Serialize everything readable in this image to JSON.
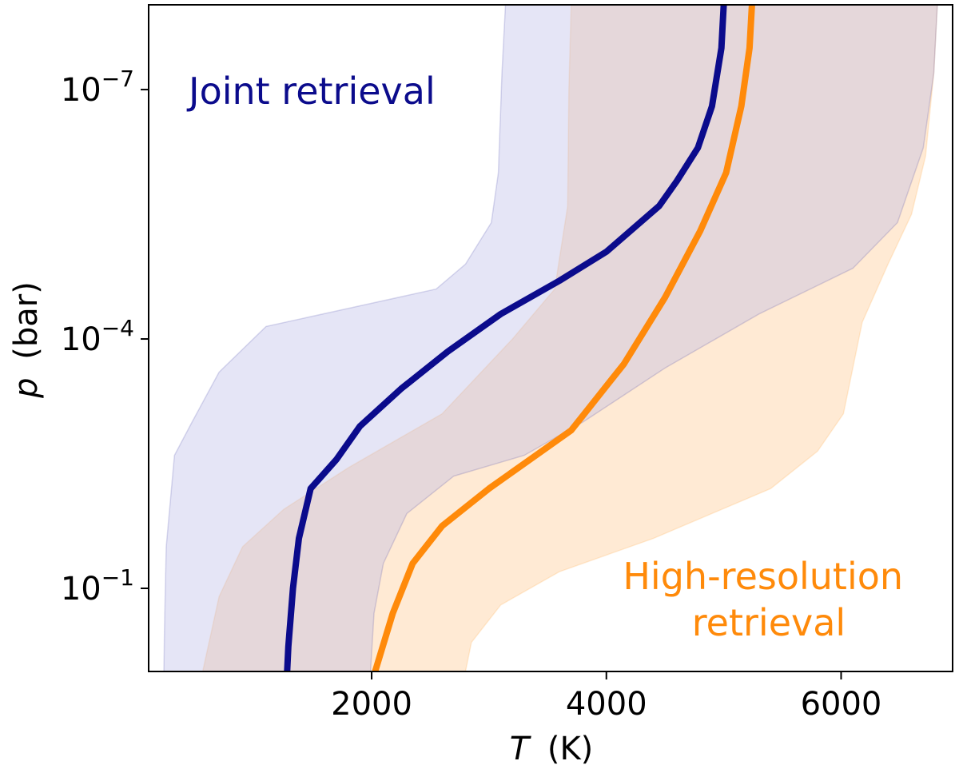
{
  "chart_data": {
    "type": "line",
    "xlabel": {
      "symbol": "T",
      "unit": "(K)"
    },
    "ylabel": {
      "symbol": "p",
      "unit": "(bar)"
    },
    "xlim": [
      100,
      6950
    ],
    "ylim_log10": [
      -8.02,
      0.0
    ],
    "y_scale": "log",
    "x_ticks": [
      {
        "value": 2000,
        "label": "2000"
      },
      {
        "value": 4000,
        "label": "4000"
      },
      {
        "value": 6000,
        "label": "6000"
      }
    ],
    "y_ticks": [
      {
        "value_log10": -7,
        "base": "10",
        "exp": "−7"
      },
      {
        "value_log10": -4,
        "base": "10",
        "exp": "−4"
      },
      {
        "value_log10": -1,
        "base": "10",
        "exp": "−1"
      }
    ],
    "grid": false,
    "series": [
      {
        "name": "Joint retrieval",
        "color": "#0b0b8c",
        "band_color": "#b8b8e6",
        "median": [
          [
            5000,
            -8.02
          ],
          [
            4980,
            -7.5
          ],
          [
            4900,
            -6.8
          ],
          [
            4780,
            -6.3
          ],
          [
            4600,
            -5.9
          ],
          [
            4450,
            -5.6
          ],
          [
            4000,
            -5.05
          ],
          [
            3600,
            -4.7
          ],
          [
            3100,
            -4.3
          ],
          [
            2650,
            -3.85
          ],
          [
            2250,
            -3.4
          ],
          [
            1900,
            -2.95
          ],
          [
            1700,
            -2.55
          ],
          [
            1480,
            -2.2
          ],
          [
            1380,
            -1.6
          ],
          [
            1330,
            -1.0
          ],
          [
            1290,
            -0.3
          ],
          [
            1280,
            0.0
          ]
        ],
        "band_lower": [
          [
            3140,
            -8.02
          ],
          [
            3110,
            -7.2
          ],
          [
            3080,
            -6.0
          ],
          [
            3020,
            -5.4
          ],
          [
            2800,
            -4.9
          ],
          [
            2550,
            -4.6
          ],
          [
            1100,
            -4.15
          ],
          [
            700,
            -3.6
          ],
          [
            470,
            -3.0
          ],
          [
            320,
            -2.6
          ],
          [
            250,
            -1.5
          ],
          [
            235,
            -0.5
          ],
          [
            230,
            0.0
          ]
        ],
        "band_upper": [
          [
            6820,
            -8.02
          ],
          [
            6790,
            -7.2
          ],
          [
            6700,
            -6.3
          ],
          [
            6480,
            -5.4
          ],
          [
            6100,
            -4.85
          ],
          [
            5300,
            -4.3
          ],
          [
            4500,
            -3.65
          ],
          [
            3800,
            -3.0
          ],
          [
            3300,
            -2.6
          ],
          [
            2700,
            -2.35
          ],
          [
            2300,
            -1.9
          ],
          [
            2100,
            -1.3
          ],
          [
            2020,
            -0.7
          ],
          [
            1990,
            0.0
          ]
        ]
      },
      {
        "name": "High-resolution retrieval",
        "name_lines": [
          "High-resolution",
          "retrieval"
        ],
        "color": "#ff8a0a",
        "band_color": "#ffd9b0",
        "median": [
          [
            5240,
            -8.02
          ],
          [
            5220,
            -7.5
          ],
          [
            5150,
            -6.8
          ],
          [
            5020,
            -6.0
          ],
          [
            4800,
            -5.3
          ],
          [
            4500,
            -4.5
          ],
          [
            4150,
            -3.7
          ],
          [
            3700,
            -2.9
          ],
          [
            3400,
            -2.6
          ],
          [
            3000,
            -2.2
          ],
          [
            2600,
            -1.75
          ],
          [
            2350,
            -1.3
          ],
          [
            2180,
            -0.7
          ],
          [
            2030,
            0.0
          ]
        ],
        "band_lower": [
          [
            3700,
            -8.02
          ],
          [
            3680,
            -7.0
          ],
          [
            3670,
            -5.6
          ],
          [
            3560,
            -4.6
          ],
          [
            3200,
            -4.0
          ],
          [
            2600,
            -3.1
          ],
          [
            1800,
            -2.45
          ],
          [
            1250,
            -1.95
          ],
          [
            900,
            -1.5
          ],
          [
            700,
            -0.9
          ],
          [
            560,
            0.0
          ]
        ],
        "band_upper": [
          [
            6820,
            -8.02
          ],
          [
            6790,
            -7.2
          ],
          [
            6720,
            -6.2
          ],
          [
            6600,
            -5.5
          ],
          [
            6400,
            -4.9
          ],
          [
            6180,
            -4.2
          ],
          [
            6020,
            -3.1
          ],
          [
            5800,
            -2.65
          ],
          [
            5400,
            -2.2
          ],
          [
            4400,
            -1.6
          ],
          [
            3600,
            -1.2
          ],
          [
            3100,
            -0.8
          ],
          [
            2850,
            -0.35
          ],
          [
            2800,
            0.0
          ]
        ]
      }
    ]
  }
}
